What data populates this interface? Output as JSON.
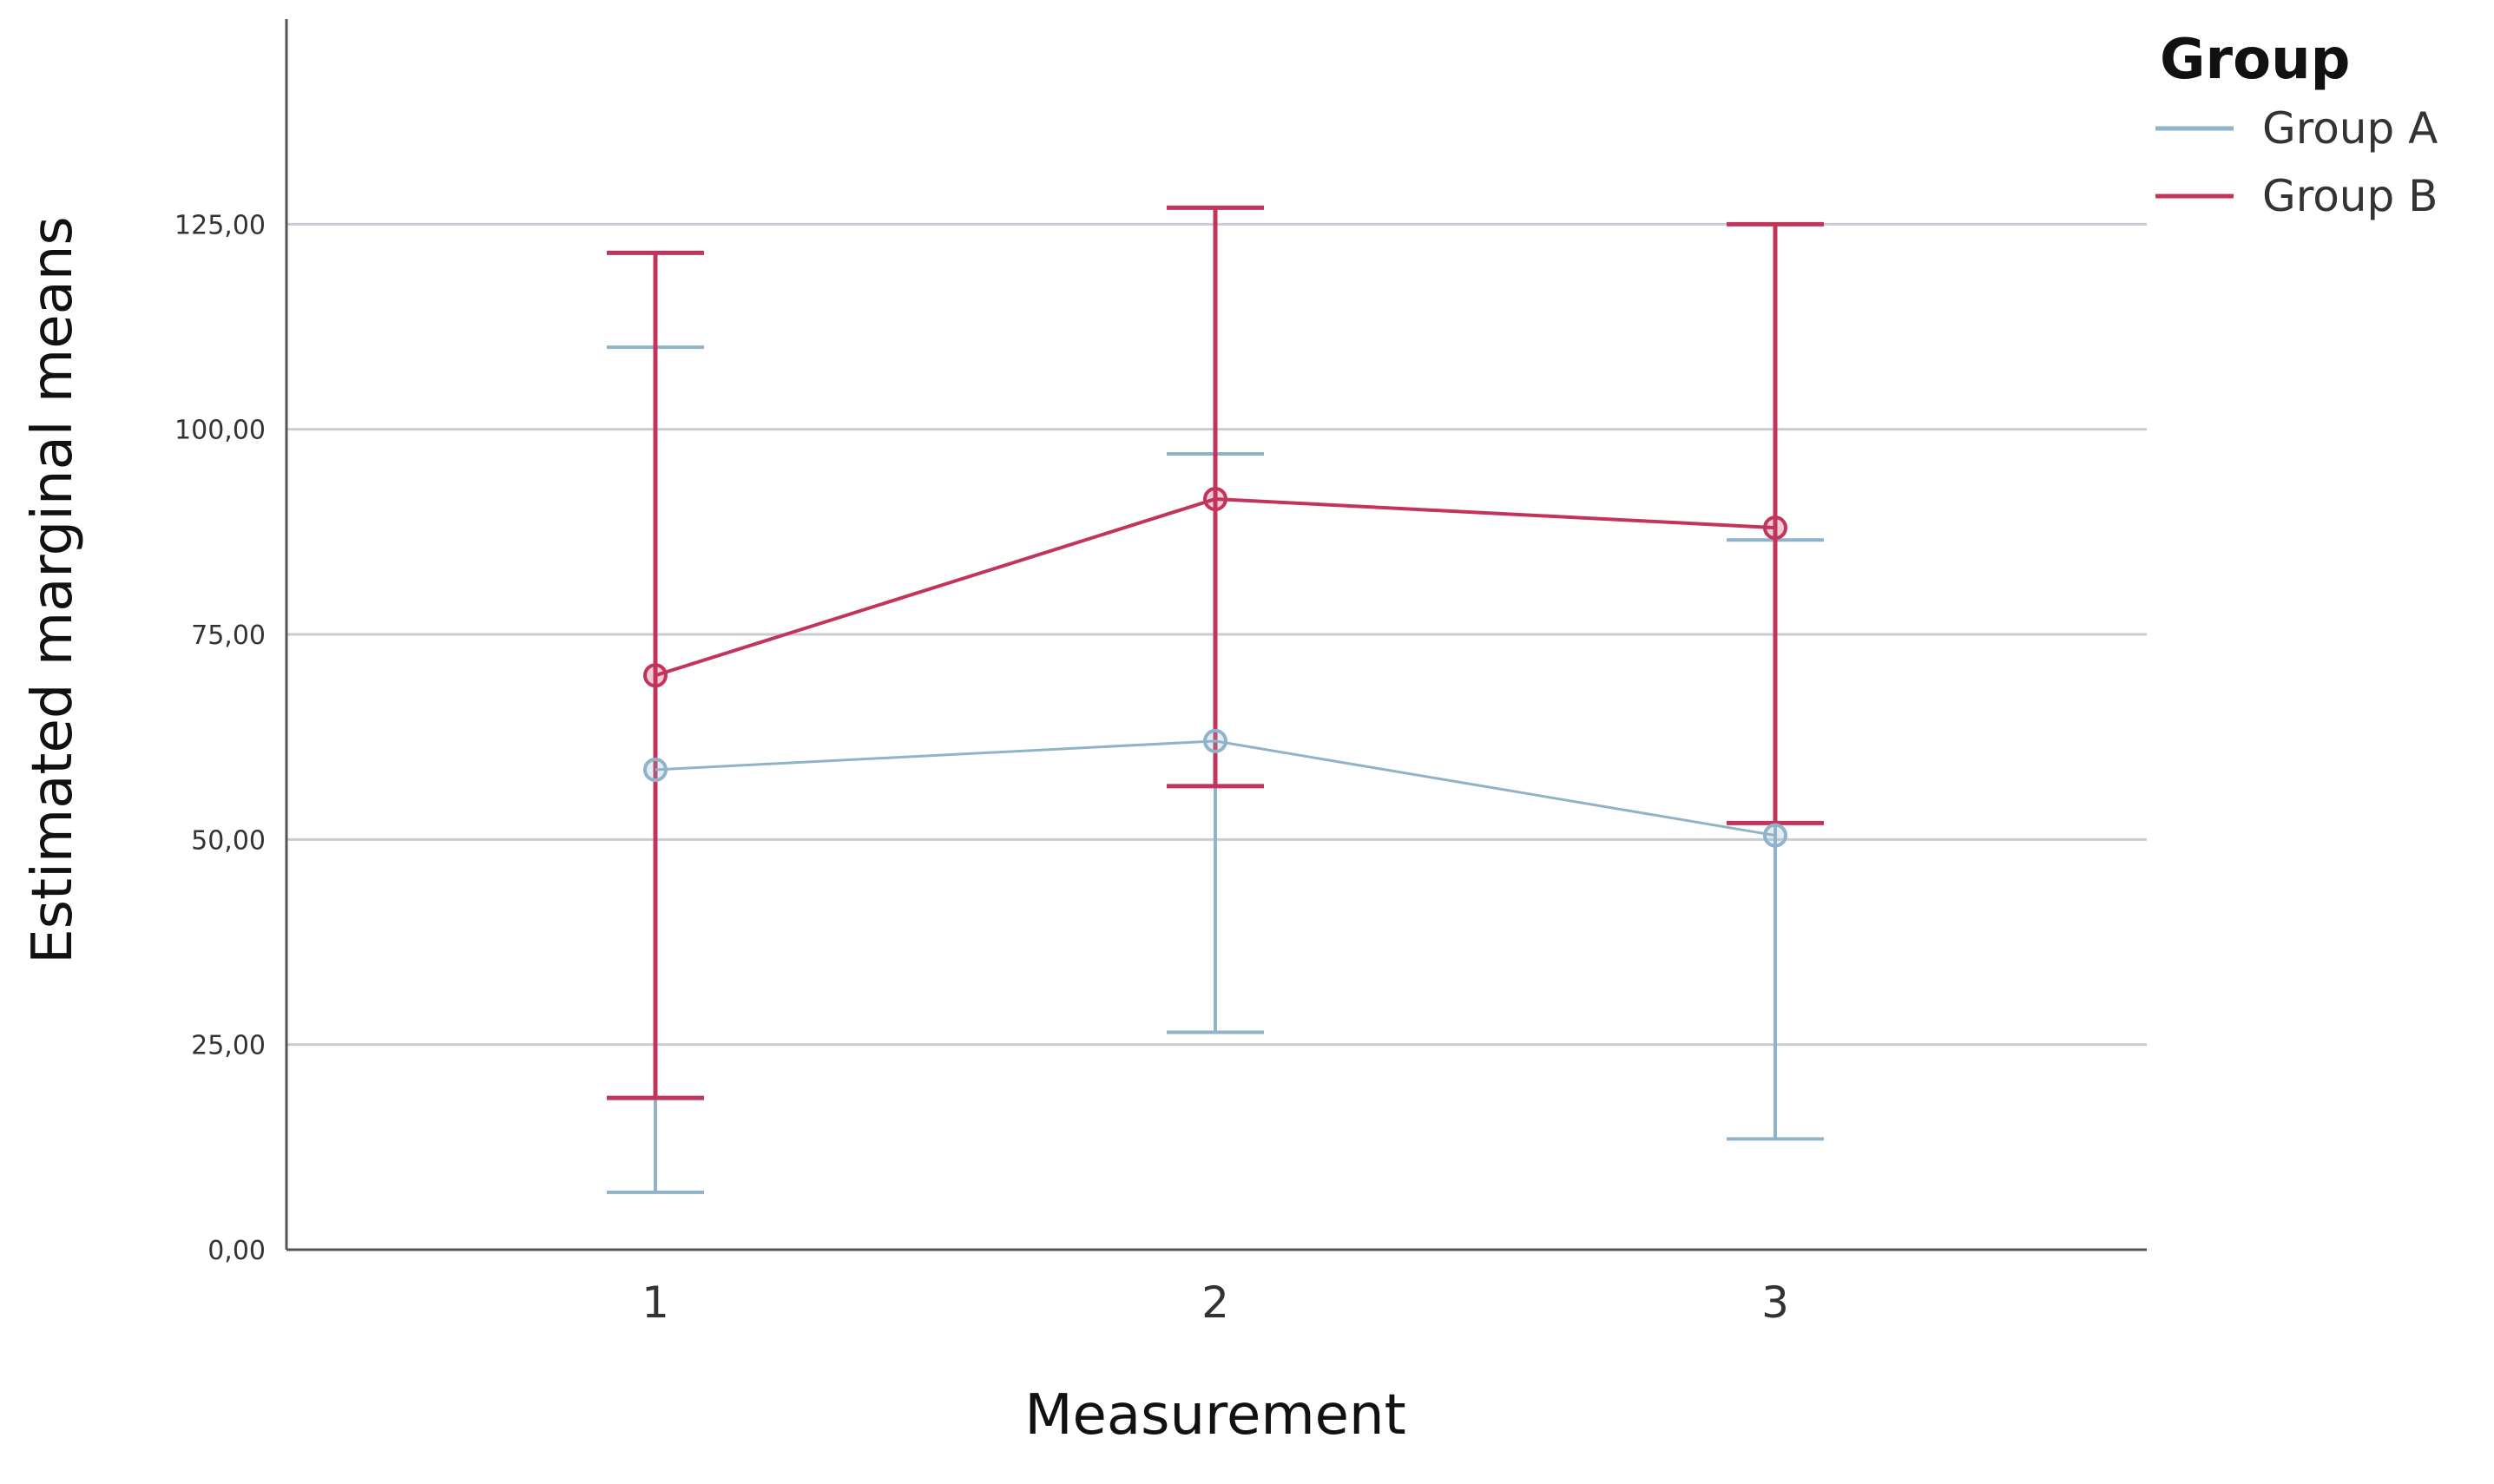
{
  "chart_data": {
    "type": "line",
    "xlabel": "Measurement",
    "ylabel": "Estimated marginal means",
    "categories": [
      "1",
      "2",
      "3"
    ],
    "ylim": [
      0,
      150
    ],
    "yticks": [
      0,
      25,
      50,
      75,
      100,
      125
    ],
    "ytick_labels": [
      "0,00",
      "25,00",
      "50,00",
      "75,00",
      "100,00",
      "125,00"
    ],
    "grid": true,
    "legend": {
      "title": "Group",
      "placement": "top-right"
    },
    "series": [
      {
        "name": "Group A",
        "color": "#8fb3c9",
        "values": [
          58.5,
          62,
          50.5
        ],
        "error_low": [
          7,
          26.5,
          13.5
        ],
        "error_high": [
          110,
          97,
          86.5
        ]
      },
      {
        "name": "Group B",
        "color": "#c2345c",
        "values": [
          70,
          91.5,
          88
        ],
        "error_low": [
          18.5,
          56.5,
          52
        ],
        "error_high": [
          121.5,
          127,
          125
        ]
      }
    ]
  }
}
